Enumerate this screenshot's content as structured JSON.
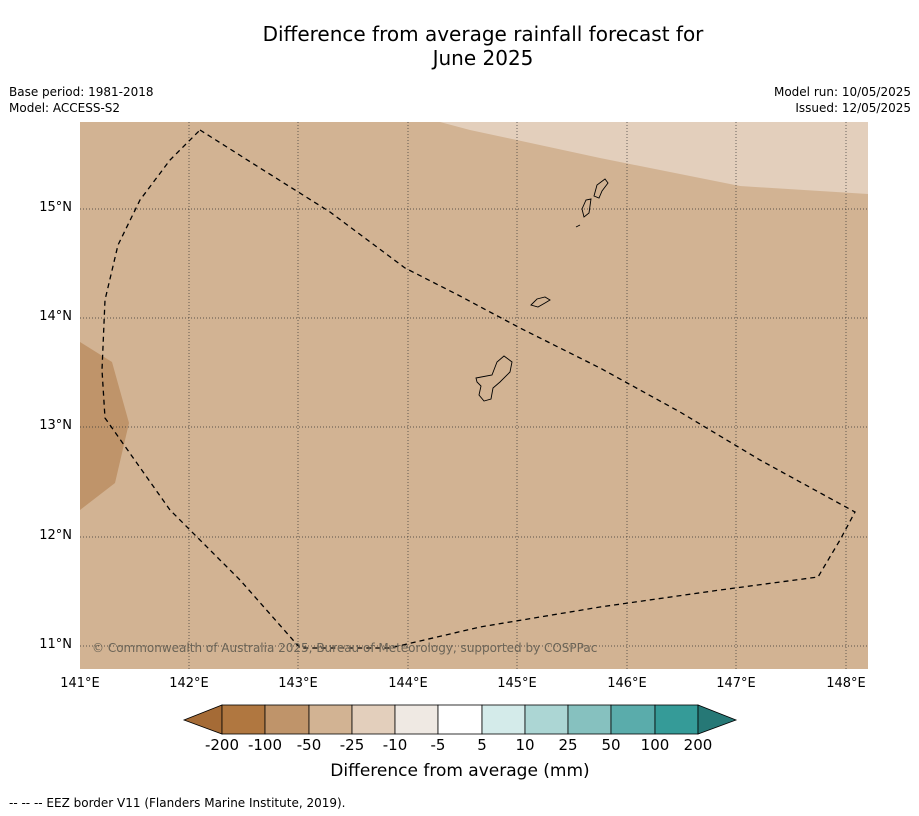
{
  "header": {
    "title_line1": "Difference from average rainfall forecast for",
    "title_line2": "June 2025",
    "base_period": "Base period: 1981-2018",
    "model": "Model: ACCESS-S2",
    "model_run": "Model run: 10/05/2025",
    "issued": "Issued: 12/05/2025"
  },
  "map": {
    "lon_ticks": [
      "141°E",
      "142°E",
      "143°E",
      "144°E",
      "145°E",
      "146°E",
      "147°E",
      "148°E"
    ],
    "lat_ticks": [
      "15°N",
      "14°N",
      "13°N",
      "12°N",
      "11°N"
    ],
    "credit": "© Commonwealth of Australia 2025, Bureau of Meteorology, supported by COSPPac",
    "colors": {
      "background_fill": "#d2b393",
      "dry_patch": "#bf946a",
      "light_patch": "#e3cfbc"
    }
  },
  "colorbar": {
    "labels": [
      "-200",
      "-100",
      "-50",
      "-25",
      "-10",
      "-5",
      "5",
      "10",
      "25",
      "50",
      "100",
      "200"
    ],
    "colors": [
      "#a56b36",
      "#b07740",
      "#bf946a",
      "#d2b393",
      "#e3cfbc",
      "#efe9e3",
      "#ffffff",
      "#d4ebea",
      "#acd6d4",
      "#86c1bf",
      "#5aacab",
      "#359b98",
      "#267876"
    ],
    "title": "Difference from average (mm)"
  },
  "footnote": "--  --  -- EEZ border V11 (Flanders Marine Institute, 2019)."
}
